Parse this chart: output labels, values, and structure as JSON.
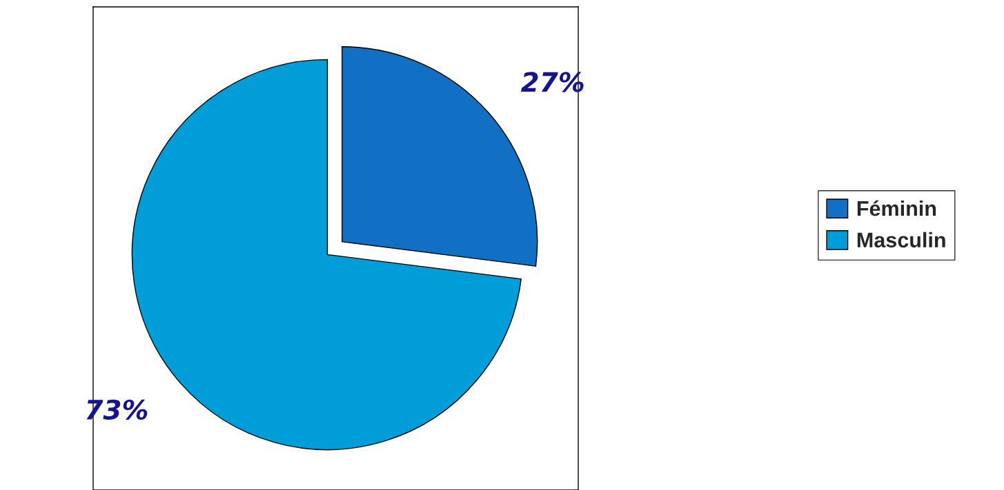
{
  "chart_data": {
    "type": "pie",
    "categories": [
      "Féminin",
      "Masculin"
    ],
    "values": [
      27,
      73
    ],
    "colors": [
      "#1270c4",
      "#009dd9"
    ],
    "value_labels": [
      "27%",
      "73%"
    ],
    "legend": "right"
  }
}
